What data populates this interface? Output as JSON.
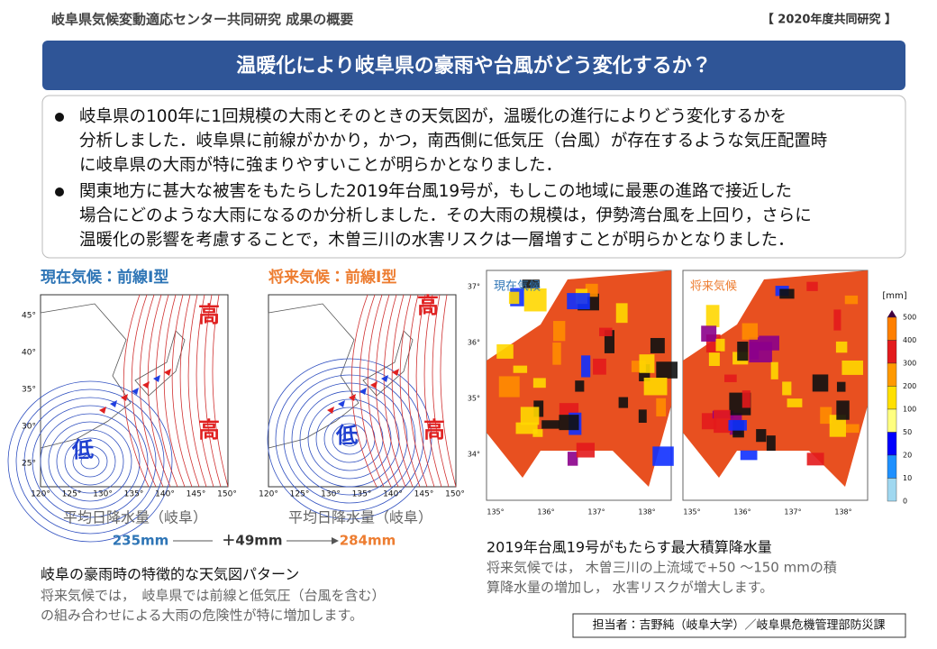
{
  "header": {
    "title": "岐阜県気候変動適応センター共同研究  成果の概要",
    "tag": "【 2020年度共同研究 】"
  },
  "banner": {
    "title": "温暖化により岐阜県の豪雨や台風がどう変化するか？"
  },
  "bullets": [
    {
      "lines": [
        "岐阜県の100年に1回規模の大雨とそのときの天気図が，温暖化の進行によりどう変化するかを",
        "分析しました．岐阜県に前線がかかり，かつ，南西側に低気圧（台風）が存在するような気圧配置時",
        "に岐阜県の大雨が特に強まりやすいことが明らかとなりました．"
      ]
    },
    {
      "lines": [
        "関東地方に甚大な被害をもたらした2019年台風19号が，もしこの地域に最悪の進路で接近した",
        "場合にどのような大雨になるのか分析しました．その大雨の規模は，伊勢湾台風を上回り，さらに",
        "温暖化の影響を考慮することで，木曽三川の水害リスクは一層増すことが明らかとなりました．"
      ]
    }
  ],
  "weather_maps": {
    "panels": [
      {
        "label": "現在気候：前線I型",
        "pressure_labels": [
          "高",
          "高",
          "低"
        ]
      },
      {
        "label": "将来気候：前線I型",
        "pressure_labels": [
          "高",
          "低",
          "高"
        ]
      }
    ],
    "lat_ticks": [
      "45°",
      "40°",
      "35°",
      "30°",
      "25°"
    ],
    "lon_ticks": [
      "120°",
      "125°",
      "130°",
      "135°",
      "140°",
      "145°",
      "150°"
    ],
    "precip_label": "平均日降水量（岐阜）",
    "present_value": "235mm",
    "change": "＋49mm",
    "future_value": "284mm",
    "caption": "岐阜の豪雨時の特徴的な天気図パターン",
    "description": [
      "将来気候では，　岐阜県では前線と低気圧（台風を含む）",
      "の組み合わせによる大雨の危険性が特に増加します。"
    ]
  },
  "rain_maps": {
    "panels": [
      {
        "label": "現在気候"
      },
      {
        "label": "将来気候"
      }
    ],
    "lat_ticks": [
      "37°",
      "36°",
      "35°",
      "34°"
    ],
    "lon_ticks": [
      "135°",
      "136°",
      "137°",
      "138°"
    ],
    "colorbar": {
      "unit": "[mm]",
      "ticks": [
        "500",
        "400",
        "300",
        "200",
        "100",
        "50",
        "20",
        "10",
        "0"
      ]
    },
    "caption": "2019年台風19号がもたらす最大積算降水量",
    "description": [
      "将来気候では，  木曽三川の上流域で+50 ～150 mmの積",
      "算降水量の増加し，  水害リスクが増大します。"
    ]
  },
  "footer": {
    "credit": "担当者：吉野純（岐阜大学）／岐阜県危機管理部防災課"
  }
}
